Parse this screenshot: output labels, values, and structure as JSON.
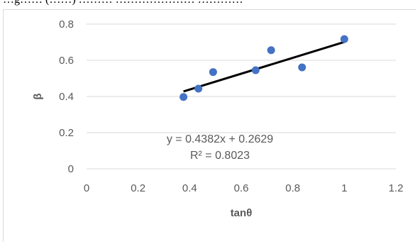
{
  "caption_fragment": "…g…… (……) ……… ………………… …………",
  "chart_data": {
    "type": "scatter",
    "xlabel": "tanθ",
    "ylabel": "β",
    "xlim": [
      0,
      1.2
    ],
    "ylim": [
      0,
      0.8
    ],
    "x_ticks": [
      0,
      0.2,
      0.4,
      0.6,
      0.8,
      1,
      1.2
    ],
    "x_tick_labels": [
      "0",
      "0.2",
      "0.4",
      "0.6",
      "0.8",
      "1",
      "1.2"
    ],
    "y_ticks": [
      0,
      0.2,
      0.4,
      0.6,
      0.8
    ],
    "y_tick_labels": [
      "0",
      "0.2",
      "0.4",
      "0.6",
      "0.8"
    ],
    "grid": "horizontal",
    "legend": "none",
    "marker_color": "#4472c4",
    "trendline_color": "#000000",
    "series": [
      {
        "x": [
          0.376,
          0.434,
          0.491,
          0.656,
          0.716,
          0.836,
          1.0
        ],
        "y": [
          0.397,
          0.443,
          0.535,
          0.545,
          0.656,
          0.561,
          0.717
        ]
      }
    ],
    "trendline": {
      "slope": 0.4382,
      "intercept": 0.2629,
      "x_range": [
        0.376,
        1.0
      ],
      "equation_text": "y = 0.4382x + 0.2629",
      "r2_text": "R² = 0.8023"
    }
  }
}
